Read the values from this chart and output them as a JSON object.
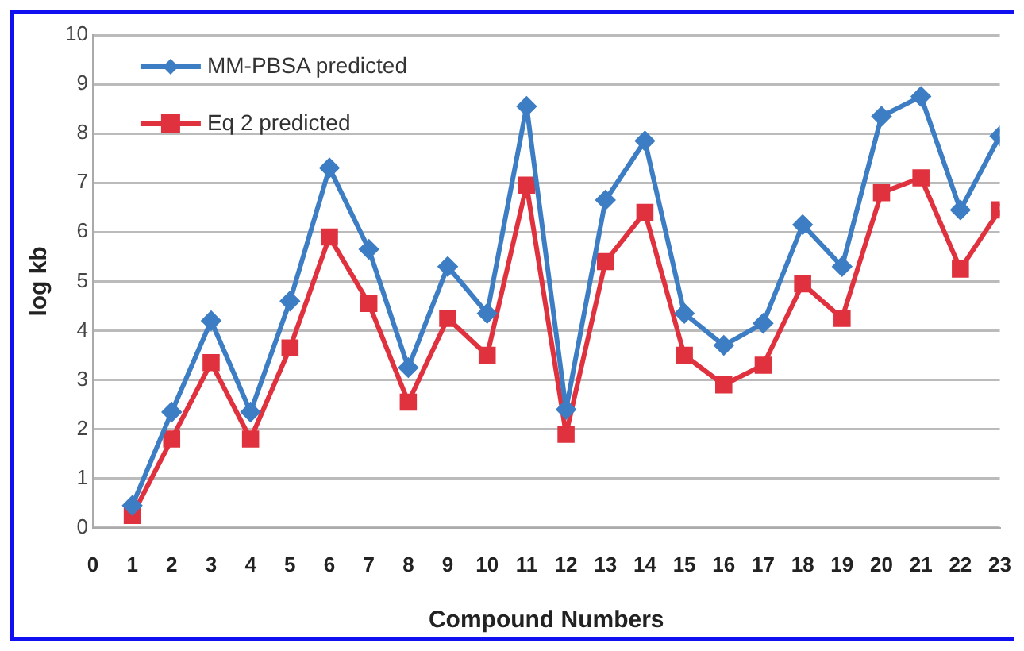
{
  "chart_data": {
    "type": "line",
    "xlabel": "Compound Numbers",
    "ylabel": "log kb",
    "x": [
      1,
      2,
      3,
      4,
      5,
      6,
      7,
      8,
      9,
      10,
      11,
      12,
      13,
      14,
      15,
      16,
      17,
      18,
      19,
      20,
      21,
      22,
      23
    ],
    "series": [
      {
        "name": "MM-PBSA predicted",
        "color": "#3c7dc4",
        "marker": "diamond",
        "values": [
          0.45,
          2.35,
          4.2,
          2.35,
          4.6,
          7.3,
          5.65,
          3.25,
          5.3,
          4.35,
          8.55,
          2.4,
          6.65,
          7.85,
          4.35,
          3.7,
          4.15,
          6.15,
          5.3,
          8.35,
          8.75,
          6.45,
          7.95
        ]
      },
      {
        "name": "Eq 2 predicted",
        "color": "#e0323e",
        "marker": "square",
        "values": [
          0.25,
          1.8,
          3.35,
          1.8,
          3.65,
          5.9,
          4.55,
          2.55,
          4.25,
          3.5,
          6.95,
          1.9,
          5.4,
          6.4,
          3.5,
          2.9,
          3.3,
          4.95,
          4.25,
          6.8,
          7.1,
          5.25,
          6.45
        ]
      }
    ],
    "xlim": [
      0,
      23
    ],
    "xticks": [
      0,
      1,
      2,
      3,
      4,
      5,
      6,
      7,
      8,
      9,
      10,
      11,
      12,
      13,
      14,
      15,
      16,
      17,
      18,
      19,
      20,
      21,
      22,
      23
    ],
    "ylim": [
      0,
      10
    ],
    "yticks": [
      0,
      1,
      2,
      3,
      4,
      5,
      6,
      7,
      8,
      9,
      10
    ],
    "grid": "y",
    "legend": "top left",
    "line_style": "solid"
  }
}
